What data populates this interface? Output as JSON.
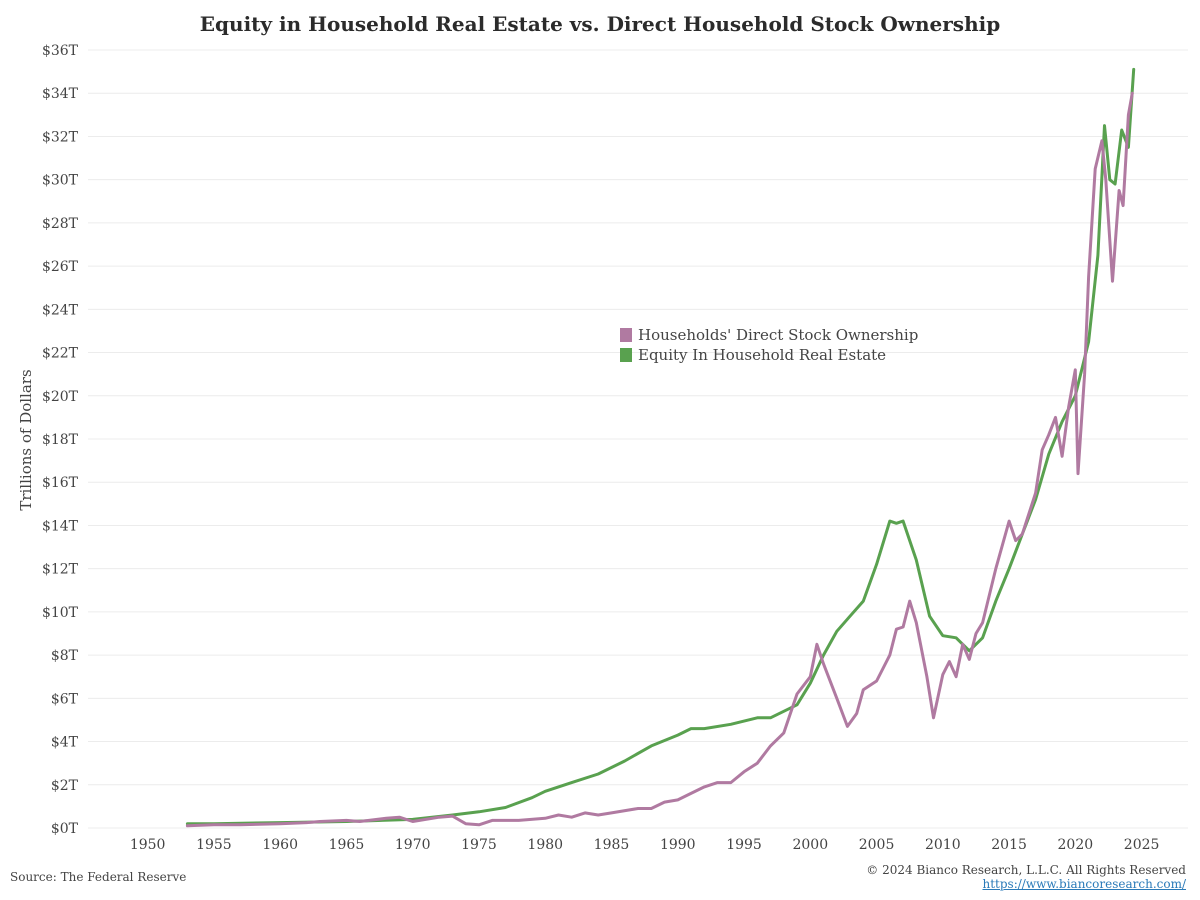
{
  "title": "Equity in Household Real Estate vs. Direct Household Stock Ownership",
  "source": "Source: The Federal Reserve",
  "copyright": "© 2024 Bianco Research, L.L.C. All Rights Reserved",
  "link": "https://www.biancoresearch.com/",
  "legend": [
    {
      "label": "Households' Direct Stock Ownership",
      "color": "#b07aa1"
    },
    {
      "label": "Equity In Household Real Estate",
      "color": "#59a14f"
    }
  ],
  "chart_data": {
    "type": "line",
    "title": "Equity in Household Real Estate vs. Direct Household Stock Ownership",
    "ylabel": "Trillions of Dollars",
    "xlabel": "",
    "xlim": [
      1945.5,
      2028.5
    ],
    "ylim": [
      0,
      36
    ],
    "x_ticks": [
      1950,
      1955,
      1960,
      1965,
      1970,
      1975,
      1980,
      1985,
      1990,
      1995,
      2000,
      2005,
      2010,
      2015,
      2020,
      2025
    ],
    "y_ticks": [
      0,
      2,
      4,
      6,
      8,
      10,
      12,
      14,
      16,
      18,
      20,
      22,
      24,
      26,
      28,
      30,
      32,
      34,
      36
    ],
    "y_tick_labels": [
      "$0T",
      "$2T",
      "$4T",
      "$6T",
      "$8T",
      "$10T",
      "$12T",
      "$14T",
      "$16T",
      "$18T",
      "$20T",
      "$22T",
      "$24T",
      "$26T",
      "$28T",
      "$30T",
      "$32T",
      "$34T",
      "$36T"
    ],
    "grid": "horizontal",
    "legend_position": "center",
    "series": [
      {
        "name": "Households' Direct Stock Ownership",
        "color": "#b07aa1",
        "points": [
          [
            1953,
            0.1
          ],
          [
            1955,
            0.15
          ],
          [
            1957,
            0.15
          ],
          [
            1960,
            0.2
          ],
          [
            1962,
            0.25
          ],
          [
            1963,
            0.3
          ],
          [
            1965,
            0.35
          ],
          [
            1966,
            0.3
          ],
          [
            1968,
            0.45
          ],
          [
            1969,
            0.5
          ],
          [
            1970,
            0.3
          ],
          [
            1972,
            0.5
          ],
          [
            1973,
            0.55
          ],
          [
            1974,
            0.2
          ],
          [
            1975,
            0.15
          ],
          [
            1976,
            0.35
          ],
          [
            1978,
            0.35
          ],
          [
            1980,
            0.45
          ],
          [
            1981,
            0.6
          ],
          [
            1982,
            0.5
          ],
          [
            1983,
            0.7
          ],
          [
            1984,
            0.6
          ],
          [
            1985,
            0.7
          ],
          [
            1987,
            0.9
          ],
          [
            1988,
            0.9
          ],
          [
            1989,
            1.2
          ],
          [
            1990,
            1.3
          ],
          [
            1991,
            1.6
          ],
          [
            1992,
            1.9
          ],
          [
            1993,
            2.1
          ],
          [
            1994,
            2.1
          ],
          [
            1995,
            2.6
          ],
          [
            1996,
            3.0
          ],
          [
            1997,
            3.8
          ],
          [
            1998,
            4.4
          ],
          [
            1999,
            6.2
          ],
          [
            2000,
            7.0
          ],
          [
            2000.5,
            8.5
          ],
          [
            2001,
            7.6
          ],
          [
            2002,
            6.0
          ],
          [
            2002.8,
            4.7
          ],
          [
            2003.5,
            5.3
          ],
          [
            2004,
            6.4
          ],
          [
            2005,
            6.8
          ],
          [
            2006,
            8.0
          ],
          [
            2006.5,
            9.2
          ],
          [
            2007,
            9.3
          ],
          [
            2007.5,
            10.5
          ],
          [
            2008,
            9.5
          ],
          [
            2008.8,
            7.0
          ],
          [
            2009.3,
            5.1
          ],
          [
            2010,
            7.1
          ],
          [
            2010.5,
            7.7
          ],
          [
            2011,
            7.0
          ],
          [
            2011.5,
            8.5
          ],
          [
            2012,
            7.8
          ],
          [
            2012.5,
            9.0
          ],
          [
            2013,
            9.5
          ],
          [
            2014,
            12.0
          ],
          [
            2015,
            14.2
          ],
          [
            2015.5,
            13.3
          ],
          [
            2016,
            13.6
          ],
          [
            2017,
            15.5
          ],
          [
            2017.5,
            17.5
          ],
          [
            2018,
            18.2
          ],
          [
            2018.5,
            19.0
          ],
          [
            2019,
            17.2
          ],
          [
            2019.5,
            19.5
          ],
          [
            2020,
            21.2
          ],
          [
            2020.2,
            16.4
          ],
          [
            2020.7,
            21.0
          ],
          [
            2021,
            25.5
          ],
          [
            2021.5,
            30.5
          ],
          [
            2022,
            31.8
          ],
          [
            2022.3,
            30.0
          ],
          [
            2022.8,
            25.3
          ],
          [
            2023.3,
            29.5
          ],
          [
            2023.6,
            28.8
          ],
          [
            2024,
            33.0
          ],
          [
            2024.3,
            34.0
          ]
        ]
      },
      {
        "name": "Equity In Household Real Estate",
        "color": "#59a14f",
        "points": [
          [
            1953,
            0.2
          ],
          [
            1955,
            0.2
          ],
          [
            1960,
            0.25
          ],
          [
            1965,
            0.3
          ],
          [
            1970,
            0.4
          ],
          [
            1973,
            0.6
          ],
          [
            1975,
            0.75
          ],
          [
            1977,
            0.95
          ],
          [
            1979,
            1.4
          ],
          [
            1980,
            1.7
          ],
          [
            1982,
            2.1
          ],
          [
            1984,
            2.5
          ],
          [
            1986,
            3.1
          ],
          [
            1988,
            3.8
          ],
          [
            1990,
            4.3
          ],
          [
            1991,
            4.6
          ],
          [
            1992,
            4.6
          ],
          [
            1994,
            4.8
          ],
          [
            1996,
            5.1
          ],
          [
            1997,
            5.1
          ],
          [
            1999,
            5.7
          ],
          [
            2000,
            6.7
          ],
          [
            2001,
            8.0
          ],
          [
            2002,
            9.1
          ],
          [
            2003,
            9.8
          ],
          [
            2004,
            10.5
          ],
          [
            2005,
            12.2
          ],
          [
            2006,
            14.2
          ],
          [
            2006.5,
            14.1
          ],
          [
            2007,
            14.2
          ],
          [
            2008,
            12.4
          ],
          [
            2009,
            9.8
          ],
          [
            2010,
            8.9
          ],
          [
            2011,
            8.8
          ],
          [
            2012,
            8.2
          ],
          [
            2013,
            8.8
          ],
          [
            2014,
            10.5
          ],
          [
            2015,
            12.0
          ],
          [
            2016,
            13.6
          ],
          [
            2017,
            15.2
          ],
          [
            2018,
            17.3
          ],
          [
            2019,
            18.8
          ],
          [
            2020,
            20.0
          ],
          [
            2021,
            22.5
          ],
          [
            2021.7,
            26.5
          ],
          [
            2022.2,
            32.5
          ],
          [
            2022.6,
            30.0
          ],
          [
            2023,
            29.8
          ],
          [
            2023.5,
            32.3
          ],
          [
            2024,
            31.5
          ],
          [
            2024.4,
            35.1
          ]
        ]
      }
    ]
  }
}
